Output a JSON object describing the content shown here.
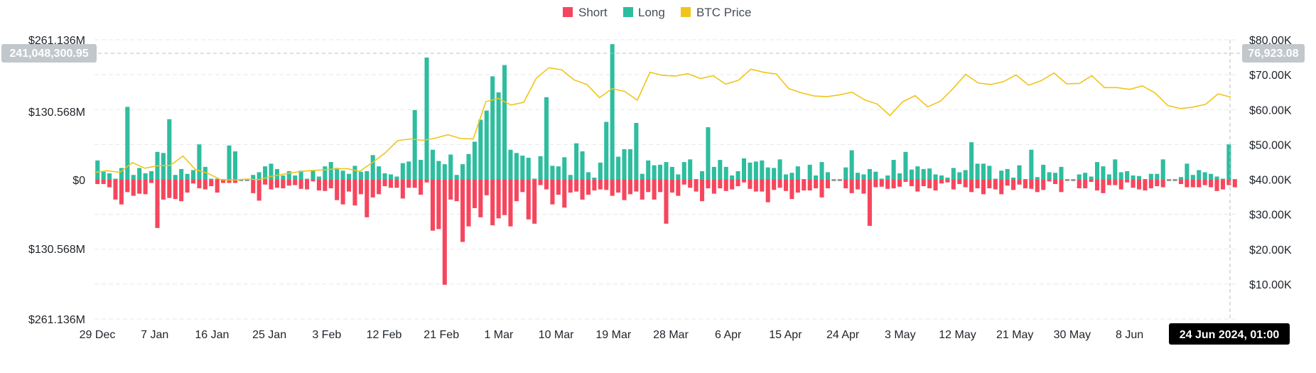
{
  "colors": {
    "short": "#f6465d",
    "long": "#2ebd9f",
    "btc_price": "#f0c419",
    "neutral_bar": "#9a9a9a",
    "grid": "#e6e8ea",
    "crosshair": "#b7bdc6",
    "axis_badge": "#c2c7cc",
    "date_badge": "#000000"
  },
  "crosshair": {
    "left_value": "241,048,300.95",
    "right_value": "76,923.08",
    "date": "24 Jun 2024, 01:00"
  },
  "chart_data": {
    "type": "bar",
    "legend": [
      "Short",
      "Long",
      "BTC Price"
    ],
    "legend_position": "top-center",
    "grid": true,
    "x_start": "2023-12-29",
    "x_end": "2024-06-24",
    "x_tick_labels": [
      "29 Dec",
      "7 Jan",
      "16 Jan",
      "25 Jan",
      "3 Feb",
      "12 Feb",
      "21 Feb",
      "1 Mar",
      "10 Mar",
      "19 Mar",
      "28 Mar",
      "6 Apr",
      "15 Apr",
      "24 Apr",
      "3 May",
      "12 May",
      "21 May",
      "30 May",
      "8 Jun"
    ],
    "y_left_tick_labels": [
      "$261.136M",
      "$130.568M",
      "$0",
      "$130.568M",
      "$261.136M"
    ],
    "y_left_range": [
      -261.136,
      261.136
    ],
    "y_left_unit": "M USD",
    "y_right_tick_labels": [
      "$80.00K",
      "$70.00K",
      "$60.00K",
      "$50.00K",
      "$40.00K",
      "$30.00K",
      "$20.00K",
      "$10.00K"
    ],
    "y_right_range": [
      0,
      80000
    ],
    "series": [
      {
        "name": "Long",
        "axis": "left",
        "values": [
          36,
          15,
          12,
          2,
          22,
          136,
          9,
          22,
          12,
          16,
          52,
          50,
          113,
          9,
          20,
          11,
          18,
          66,
          24,
          2,
          2,
          1,
          64,
          53,
          17,
          5,
          9,
          14,
          25,
          30,
          20,
          8,
          16,
          8,
          17,
          2,
          18,
          6,
          25,
          33,
          22,
          17,
          11,
          26,
          15,
          16,
          46,
          25,
          12,
          10,
          6,
          31,
          34,
          130,
          37,
          228,
          56,
          35,
          29,
          47,
          9,
          29,
          48,
          71,
          112,
          129,
          193,
          163,
          214,
          56,
          50,
          45,
          41,
          2,
          44,
          154,
          26,
          25,
          42,
          9,
          68,
          53,
          14,
          4,
          32,
          108,
          253,
          43,
          57,
          57,
          106,
          11,
          36,
          27,
          28,
          33,
          24,
          10,
          33,
          38,
          1,
          16,
          98,
          24,
          37,
          24,
          8,
          16,
          40,
          32,
          34,
          36,
          23,
          22,
          38,
          10,
          13,
          25,
          1,
          28,
          8,
          33,
          14,
          20,
          11,
          23,
          55,
          13,
          10,
          20,
          15,
          2,
          8,
          37,
          12,
          52,
          19,
          25,
          20,
          21,
          10,
          8,
          4,
          22,
          14,
          18,
          70,
          30,
          30,
          26,
          2,
          17,
          20,
          4,
          27,
          1,
          56,
          5,
          28,
          14,
          13,
          24,
          14,
          6,
          10,
          13,
          6,
          33,
          25,
          10,
          38,
          14,
          16,
          8,
          7,
          1,
          11,
          11,
          38,
          52,
          51,
          5,
          30,
          9,
          18,
          14,
          11,
          6,
          2,
          66,
          1
        ],
        "neutral_values_note": ""
      },
      {
        "name": "Short",
        "axis": "left",
        "values": [
          8,
          8,
          14,
          37,
          46,
          23,
          30,
          26,
          27,
          6,
          90,
          37,
          34,
          36,
          40,
          24,
          7,
          16,
          18,
          12,
          24,
          6,
          6,
          6,
          27,
          20,
          25,
          39,
          9,
          18,
          15,
          16,
          11,
          10,
          17,
          18,
          3,
          20,
          21,
          16,
          38,
          46,
          22,
          48,
          27,
          70,
          33,
          27,
          12,
          15,
          15,
          35,
          15,
          15,
          28,
          5,
          95,
          92,
          196,
          37,
          40,
          116,
          87,
          53,
          70,
          29,
          85,
          72,
          66,
          87,
          40,
          23,
          74,
          82,
          10,
          18,
          46,
          28,
          52,
          24,
          22,
          37,
          28,
          20,
          18,
          19,
          30,
          24,
          38,
          27,
          22,
          37,
          23,
          37,
          23,
          82,
          24,
          30,
          9,
          15,
          22,
          40,
          16,
          26,
          16,
          21,
          18,
          12,
          5,
          17,
          22,
          22,
          42,
          19,
          15,
          21,
          36,
          24,
          20,
          20,
          16,
          33,
          16,
          14,
          44,
          16,
          25,
          18,
          26,
          86,
          14,
          13,
          17,
          16,
          13,
          4,
          12,
          22,
          12,
          16,
          20,
          7,
          5,
          18,
          8,
          14,
          23,
          16,
          27,
          16,
          18,
          27,
          11,
          19,
          9,
          16,
          17,
          23,
          19,
          3,
          8,
          23,
          9,
          10,
          16,
          16,
          4,
          20,
          25,
          10,
          10,
          18,
          5,
          15,
          18,
          20,
          16,
          12,
          14,
          4,
          3,
          8,
          14,
          14,
          14,
          10,
          14,
          21,
          18,
          10,
          14
        ],
        "neutral_values_note": ""
      },
      {
        "name": "BTC Price",
        "axis": "right",
        "values": [
          42000,
          42500,
          42000,
          44800,
          43200,
          43900,
          44000,
          46700,
          42800,
          41700,
          39900,
          39800,
          40100,
          39900,
          40900,
          41500,
          42100,
          42500,
          42700,
          43000,
          43100,
          42300,
          44800,
          47500,
          51100,
          51600,
          51200,
          51800,
          52800,
          51700,
          51600,
          62300,
          63200,
          61300,
          62100,
          69000,
          72000,
          71400,
          68500,
          67200,
          63400,
          66000,
          65200,
          62700,
          70700,
          69800,
          69600,
          70300,
          68900,
          69700,
          67300,
          68400,
          71600,
          70700,
          70200,
          66000,
          64800,
          63900,
          63700,
          64200,
          65000,
          62800,
          61600,
          58300,
          62200,
          64000,
          60800,
          62400,
          66000,
          70100,
          67600,
          67200,
          68000,
          69900,
          67000,
          68300,
          70500,
          67400,
          67500,
          69700,
          66300,
          66300,
          65800,
          66800,
          64800,
          61200,
          60300,
          60700,
          61500,
          64500,
          63600
        ],
        "x_note": ""
      }
    ],
    "neutral_bar_indices": [
      24,
      25,
      123,
      124,
      162,
      163,
      179,
      180
    ]
  }
}
